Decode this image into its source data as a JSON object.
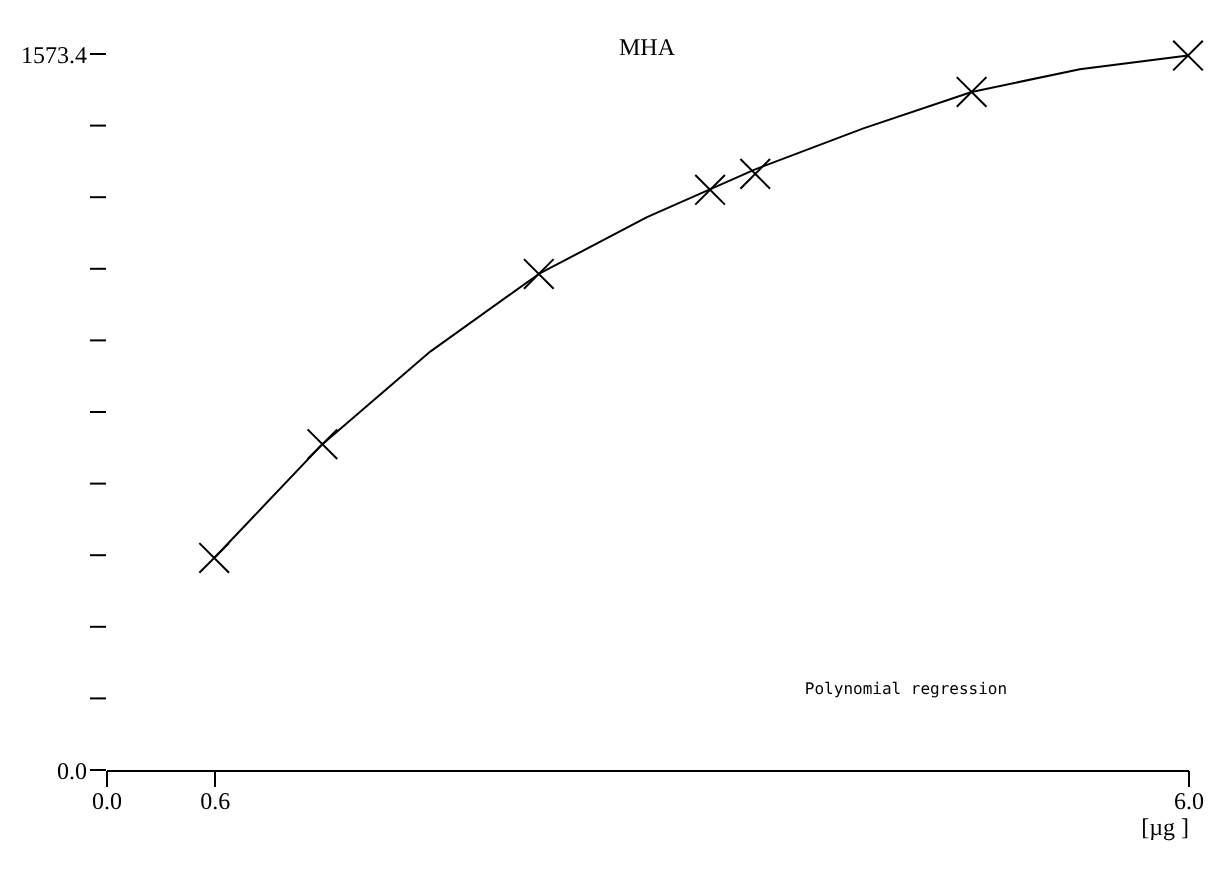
{
  "chart_data": {
    "type": "scatter",
    "title": "MHA",
    "xlabel": "[µg ]",
    "annotations": [
      "Polynomial regression"
    ],
    "xlim": [
      0,
      6
    ],
    "ylim": [
      0,
      1573.4
    ],
    "xticks": [
      {
        "value": 0,
        "label": "0.0"
      },
      {
        "value": 0.6,
        "label": "0.6"
      },
      {
        "value": 6,
        "label": "6.0"
      }
    ],
    "yticks": [
      {
        "value": 0,
        "label": "0.0"
      },
      {
        "value": 157.34,
        "label": null
      },
      {
        "value": 314.68,
        "label": null
      },
      {
        "value": 472.02,
        "label": null
      },
      {
        "value": 629.36,
        "label": null
      },
      {
        "value": 786.7,
        "label": null
      },
      {
        "value": 944.04,
        "label": null
      },
      {
        "value": 1101.38,
        "label": null
      },
      {
        "value": 1258.72,
        "label": null
      },
      {
        "value": 1416.06,
        "label": null
      },
      {
        "value": 1573.4,
        "label": "1573.4"
      }
    ],
    "grid": false,
    "series": [
      {
        "type": "line",
        "color": "#000000",
        "line_style": "solid",
        "marker": "none",
        "x": [
          0.6,
          1.2,
          1.8,
          2.4,
          3.0,
          3.6,
          4.2,
          4.8,
          5.4,
          6.0
        ],
        "values": [
          466,
          716,
          920,
          1090,
          1215,
          1320,
          1410,
          1490,
          1540,
          1570
        ]
      },
      {
        "color": "#000000",
        "marker": "cross",
        "x": [
          0.6,
          1.2,
          2.4,
          3.6,
          4.8,
          6.0
        ],
        "values": [
          466,
          716,
          1090,
          1310,
          1490,
          1570
        ]
      },
      {
        "color": "#000000",
        "marker": "cross",
        "x": [
          3.35
        ],
        "values": [
          1275
        ]
      }
    ]
  }
}
